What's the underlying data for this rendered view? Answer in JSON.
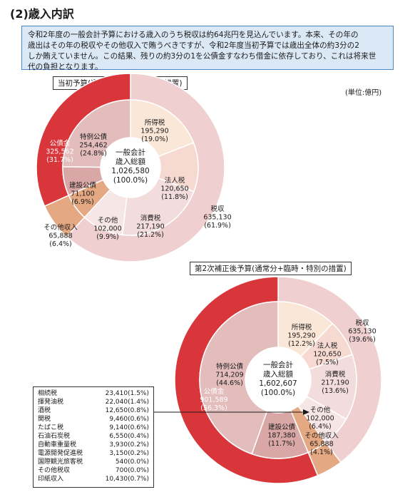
{
  "heading": "(2)歳入内訳",
  "intro_lines": [
    "令和2年度の一般会計予算における歳入のうち税収は約64兆円を見込んでいます。本来、その年の",
    "歳出はその年の税収やその他収入で賄うべきですが、令和2年度当初予算では歳出全体の約3分の2",
    "しか賄えていません。この結果、残りの約3分の1を公債金すなわち借金に依存しており、これは将来世",
    "代の負担となります。"
  ],
  "unit_label": "(単位:億円)",
  "colors": {
    "koukin_outer": "#d9363b",
    "koukin_inner": "#d87c7a",
    "tokurei": "#e3bcbc",
    "kensetsu": "#d9a8a6",
    "sonota_shunyu": "#e4a882",
    "zeishu_outer": "#efcfcf",
    "shotoku": "#fbe7d8",
    "hojin": "#f6dad2",
    "shohi": "#f3dcdc",
    "sonota": "#f7e6e6"
  },
  "chart_data": [
    {
      "type": "pie",
      "subtitle": "当初予算(通常分+臨時・特別の措置)",
      "center": {
        "line1": "一般会計",
        "line2": "歳入総額",
        "value": "1,026,580",
        "pct": "(100.0%)"
      },
      "total": 1026580,
      "outer_ring": [
        {
          "name": "税収",
          "value": 635130,
          "value_label": "635,130",
          "pct": "(61.9%)",
          "color_key": "zeishu_outer"
        },
        {
          "name": "その他収入",
          "value": 65888,
          "value_label": "65,888",
          "pct": "(6.4%)",
          "color_key": "sonota_shunyu"
        },
        {
          "name": "公債金",
          "value": 325562,
          "value_label": "325,562",
          "pct": "(31.7%)",
          "color_key": "koukin_outer"
        }
      ],
      "inner_ring": [
        {
          "name": "所得税",
          "value": 195290,
          "value_label": "195,290",
          "pct": "(19.0%)",
          "color_key": "shotoku"
        },
        {
          "name": "法人税",
          "value": 120650,
          "value_label": "120,650",
          "pct": "(11.8%)",
          "color_key": "hojin"
        },
        {
          "name": "消費税",
          "value": 217190,
          "value_label": "217,190",
          "pct": "(21.2%)",
          "color_key": "shohi"
        },
        {
          "name": "その他",
          "value": 102000,
          "value_label": "102,000",
          "pct": "(9.9%)",
          "color_key": "sonota"
        },
        {
          "name": "その他収入",
          "value": 65888,
          "value_label": "",
          "pct": "",
          "color_key": "sonota_shunyu"
        },
        {
          "name": "建設公債",
          "value": 71100,
          "value_label": "71,100",
          "pct": "(6.9%)",
          "color_key": "kensetsu"
        },
        {
          "name": "特例公債",
          "value": 254462,
          "value_label": "254,462",
          "pct": "(24.8%)",
          "color_key": "tokurei"
        }
      ]
    },
    {
      "type": "pie",
      "subtitle": "第2次補正後予算(通常分+臨時・特別の措置)",
      "center": {
        "line1": "一般会計",
        "line2": "歳入総額",
        "value": "1,602,607",
        "pct": "(100.0%)"
      },
      "total": 1602607,
      "outer_ring": [
        {
          "name": "税収",
          "value": 635130,
          "value_label": "635,130",
          "pct": "(39.6%)",
          "color_key": "zeishu_outer"
        },
        {
          "name": "その他収入",
          "value": 65888,
          "value_label": "65,888",
          "pct": "(4.1%)",
          "color_key": "sonota_shunyu"
        },
        {
          "name": "公債金",
          "value": 901589,
          "value_label": "901,589",
          "pct": "(56.3%)",
          "color_key": "koukin_outer"
        }
      ],
      "inner_ring": [
        {
          "name": "所得税",
          "value": 195290,
          "value_label": "195,290",
          "pct": "(12.2%)",
          "color_key": "shotoku"
        },
        {
          "name": "法人税",
          "value": 120650,
          "value_label": "120,650",
          "pct": "(7.5%)",
          "color_key": "hojin"
        },
        {
          "name": "消費税",
          "value": 217190,
          "value_label": "217,190",
          "pct": "(13.6%)",
          "color_key": "shohi"
        },
        {
          "name": "その他",
          "value": 102000,
          "value_label": "102,000",
          "pct": "(6.4%)",
          "color_key": "sonota"
        },
        {
          "name": "その他収入",
          "value": 65888,
          "value_label": "",
          "pct": "",
          "color_key": "sonota_shunyu"
        },
        {
          "name": "建設公債",
          "value": 187380,
          "value_label": "187,380",
          "pct": "(11.7%)",
          "color_key": "kensetsu"
        },
        {
          "name": "特例公債",
          "value": 714209,
          "value_label": "714,209",
          "pct": "(44.6%)",
          "color_key": "tokurei"
        }
      ],
      "sonota_breakdown": [
        {
          "name": "相続税",
          "value": "23,410(1.5%)"
        },
        {
          "name": "揮発油税",
          "value": "22,040(1.4%)"
        },
        {
          "name": "酒税",
          "value": "12,650(0.8%)"
        },
        {
          "name": "関税",
          "value": "9,460(0.6%)"
        },
        {
          "name": "たばこ税",
          "value": "9,140(0.6%)"
        },
        {
          "name": "石油石炭税",
          "value": "6,550(0.4%)"
        },
        {
          "name": "自動車重量税",
          "value": "3,930(0.2%)"
        },
        {
          "name": "電源開発促進税",
          "value": "3,150(0.2%)"
        },
        {
          "name": "国際観光旅客税",
          "value": "540(0.0%)"
        },
        {
          "name": "その他税収",
          "value": "700(0.0%)"
        },
        {
          "name": "印紙収入",
          "value": "10,430(0.7%)"
        }
      ]
    }
  ]
}
